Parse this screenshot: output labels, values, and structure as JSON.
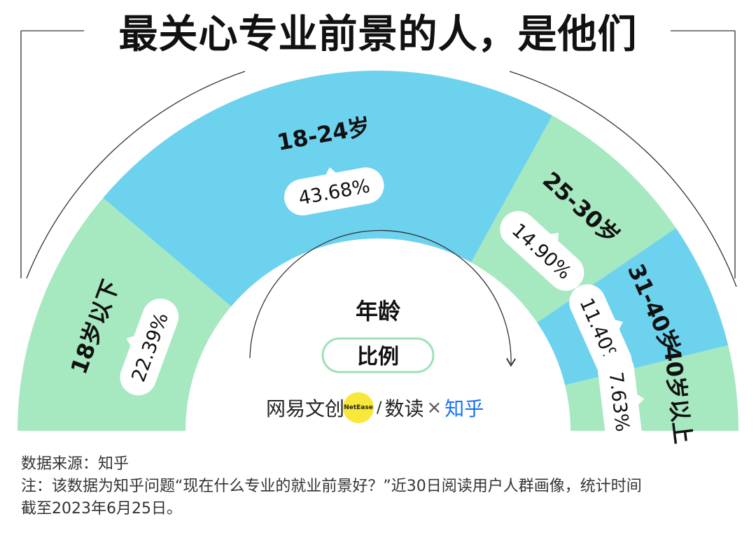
{
  "title": "最关心专业前景的人，是他们",
  "chart_data": {
    "type": "pie",
    "variant": "semicircle",
    "center_labels": [
      "年龄",
      "比例"
    ],
    "categories": [
      "18岁以下",
      "18-24岁",
      "25-30岁",
      "31-40岁",
      "40岁以上"
    ],
    "values": [
      22.39,
      43.68,
      14.9,
      11.4,
      7.63
    ],
    "value_labels": [
      "22.39%",
      "43.68%",
      "14.90%",
      "11.40%",
      "7.63%"
    ],
    "colors": [
      "#a6e8bf",
      "#6dd2ee",
      "#a6e8bf",
      "#6dd2ee",
      "#a6e8bf"
    ]
  },
  "logos": {
    "netease": "网易文创",
    "netease_badge": "NetEase",
    "slash": "/",
    "shudu": "数读",
    "times": "×",
    "zhihu": "知乎"
  },
  "notes": {
    "source": "数据来源：知乎",
    "note_line1": "注：该数据为知乎问题“现在什么专业的就业前景好？”近30日阅读用户人群画像，统计时间",
    "note_line2": "截至2023年6月25日。"
  }
}
